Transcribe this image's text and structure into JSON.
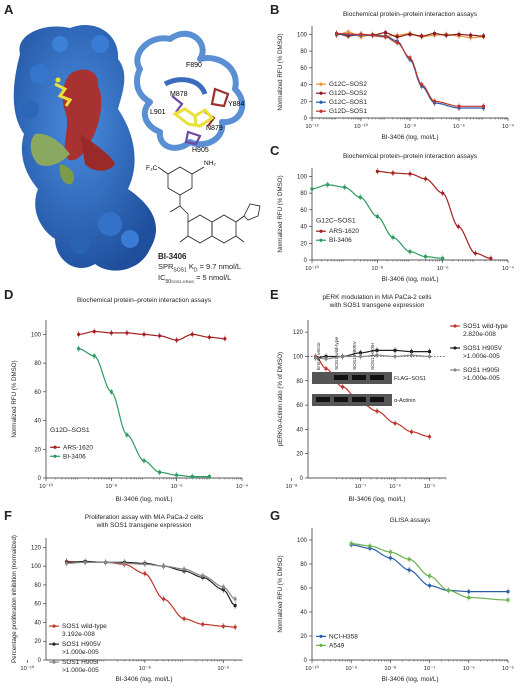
{
  "panel_letters": {
    "A": "A",
    "B": "B",
    "C": "C",
    "D": "D",
    "E": "E",
    "F": "F",
    "G": "G"
  },
  "colors": {
    "blue": "#2e6fc9",
    "red": "#a42020",
    "green": "#7c9a4a",
    "orange": "#e8943a",
    "darkred": "#8b1a1a",
    "tealgreen": "#2e9a5e",
    "crimson": "#c0342c",
    "black": "#222222",
    "gray": "#888888",
    "yellow": "#e9e03a"
  },
  "structure": {
    "residues": [
      "F890",
      "M878",
      "Y884",
      "L901",
      "N879",
      "H905"
    ],
    "compound_name": "BI-3406",
    "spr_line": "SPR",
    "spr_sub": "SOS1",
    "spr_kd": "K",
    "spr_kd_sub": "D",
    "spr_value": "= 9.7 nmol/L",
    "ic_line": "IC",
    "ic_sub": "50",
    "ic_subsub": "SOS1-KRAS",
    "ic_value": "= 5 nmol/L",
    "f3c": "F₃C",
    "nh2": "NH₂"
  },
  "chart_data": [
    {
      "id": "B",
      "type": "line",
      "title": "Biochemical protein–protein interaction assays",
      "xlabel": "BI-3406 (log, mol/L)",
      "ylabel": "Normalized RFU (% DMSO)",
      "xscale": "log",
      "xlim": [
        1e-12,
        0.0001
      ],
      "ylim": [
        0,
        110
      ],
      "xticks": [
        "10⁻¹²",
        "10⁻¹⁰",
        "10⁻⁸",
        "10⁻⁶",
        "10⁻⁴"
      ],
      "yticks": [
        0,
        20,
        40,
        60,
        80,
        100
      ],
      "legend": "bottom-left",
      "series": [
        {
          "name": "G12C–SOS2",
          "color": "#e8943a",
          "x": [
            1e-11,
            3e-11,
            1e-10,
            3e-10,
            1e-09,
            3e-09,
            1e-08,
            3e-08,
            1e-07,
            3e-07,
            1e-06,
            3e-06,
            1e-05
          ],
          "y": [
            99,
            103,
            97,
            100,
            98,
            99,
            101,
            97,
            99,
            100,
            98,
            96,
            97
          ]
        },
        {
          "name": "G12D–SOS2",
          "color": "#8b1a1a",
          "x": [
            1e-11,
            3e-11,
            1e-10,
            3e-10,
            1e-09,
            3e-09,
            1e-08,
            3e-08,
            1e-07,
            3e-07,
            1e-06,
            3e-06,
            1e-05
          ],
          "y": [
            101,
            98,
            100,
            99,
            102,
            97,
            100,
            98,
            101,
            99,
            100,
            99,
            98
          ]
        },
        {
          "name": "G12C–SOS1",
          "color": "#2b5ea8",
          "x": [
            1e-11,
            1e-10,
            1e-09,
            3e-09,
            1e-08,
            3e-08,
            1e-07,
            1e-06,
            1e-05
          ],
          "y": [
            100,
            99,
            98,
            92,
            70,
            38,
            18,
            12,
            12
          ]
        },
        {
          "name": "G12D–SOS1",
          "color": "#c0342c",
          "x": [
            1e-11,
            1e-10,
            1e-09,
            3e-09,
            1e-08,
            3e-08,
            1e-07,
            1e-06,
            1e-05
          ],
          "y": [
            101,
            100,
            97,
            90,
            72,
            40,
            20,
            14,
            14
          ]
        }
      ]
    },
    {
      "id": "C",
      "type": "line",
      "title": "Biochemical protein–protein interaction assays",
      "xlabel": "BI-3406 (log, mol/L)",
      "ylabel": "Normalized RFU (% DMSO)",
      "xscale": "log",
      "xlim": [
        1e-10,
        0.0001
      ],
      "ylim": [
        0,
        110
      ],
      "xticks": [
        "10⁻¹⁰",
        "10⁻⁸",
        "10⁻⁶",
        "10⁻⁴"
      ],
      "yticks": [
        0,
        20,
        40,
        60,
        80,
        100
      ],
      "annotation": "G12C–SOS1",
      "legend": "left",
      "series": [
        {
          "name": "ARS-1620",
          "color": "#a42020",
          "x": [
            1e-08,
            3e-08,
            1e-07,
            3e-07,
            1e-06,
            3e-06,
            1e-05,
            3e-05
          ],
          "y": [
            106,
            104,
            103,
            97,
            80,
            40,
            8,
            2
          ]
        },
        {
          "name": "BI-3406",
          "color": "#2e9a5e",
          "x": [
            1e-10,
            3e-10,
            1e-09,
            3e-09,
            1e-08,
            3e-08,
            1e-07,
            3e-07,
            1e-06
          ],
          "y": [
            85,
            90,
            87,
            75,
            52,
            27,
            10,
            4,
            2
          ]
        }
      ]
    },
    {
      "id": "D",
      "type": "line",
      "title": "Biochemical protein–protein interaction assays",
      "xlabel": "BI-3406 (log, mol/L)",
      "ylabel": "Normalized RFU (% DMSO)",
      "xscale": "log",
      "xlim": [
        1e-10,
        0.0001
      ],
      "ylim": [
        0,
        110
      ],
      "xticks": [
        "10⁻¹⁰",
        "10⁻⁸",
        "10⁻⁶",
        "10⁻⁴"
      ],
      "yticks": [
        0,
        20,
        40,
        60,
        80,
        100
      ],
      "annotation": "G12D–SOS1",
      "legend": "bottom-left",
      "series": [
        {
          "name": "ARS-1620",
          "color": "#a42020",
          "x": [
            1e-09,
            3e-09,
            1e-08,
            3e-08,
            1e-07,
            3e-07,
            1e-06,
            3e-06,
            1e-05,
            3e-05
          ],
          "y": [
            100,
            102,
            101,
            101,
            100,
            99,
            96,
            100,
            98,
            97
          ]
        },
        {
          "name": "BI-3406",
          "color": "#2e9a5e",
          "x": [
            1e-09,
            3e-09,
            1e-08,
            3e-08,
            1e-07,
            3e-07,
            1e-06,
            3e-06,
            1e-05
          ],
          "y": [
            90,
            85,
            60,
            30,
            12,
            4,
            2,
            1,
            1
          ]
        }
      ]
    },
    {
      "id": "E",
      "type": "line",
      "title": "pERK modulation in MIA PaCa-2 cells",
      "title2": "with SOS1 transgene expression",
      "xlabel": "BI-3406 (log, mol/L)",
      "ylabel": "pERK/α-Actinin ratio (% of DMSO)",
      "xscale": "log",
      "xlim": [
        3e-09,
        3e-05
      ],
      "ylim": [
        0,
        130
      ],
      "xticks": [
        "10⁻⁸",
        "10⁻⁷",
        "10⁻⁶",
        "10⁻⁵"
      ],
      "yticks": [
        0,
        20,
        40,
        60,
        80,
        100,
        120
      ],
      "legend": "right",
      "blot": {
        "lanes": [
          "Empty vector",
          "SOS1 wild-type",
          "SOS1 H905V",
          "SOS1 H905I"
        ],
        "band1": "FLAG–SOS1",
        "band2": "α-Actinin"
      },
      "series": [
        {
          "name": "SOS1 wild-type",
          "value": "2.820e-008",
          "color": "#c0342c",
          "x": [
            5e-09,
            1e-08,
            3e-08,
            1e-07,
            3e-07,
            1e-06,
            3e-06,
            1e-05
          ],
          "y": [
            100,
            90,
            75,
            62,
            55,
            45,
            38,
            34
          ]
        },
        {
          "name": "SOS1 H905V",
          "value": ">1.000e-005",
          "color": "#222222",
          "x": [
            5e-09,
            1e-08,
            3e-08,
            1e-07,
            3e-07,
            1e-06,
            3e-06,
            1e-05
          ],
          "y": [
            99,
            100,
            100,
            103,
            105,
            105,
            104,
            104
          ]
        },
        {
          "name": "SOS1 H905I",
          "value": ">1.000e-005",
          "color": "#888888",
          "x": [
            5e-09,
            1e-08,
            3e-08,
            1e-07,
            3e-07,
            1e-06,
            3e-06,
            1e-05
          ],
          "y": [
            99,
            98,
            100,
            100,
            101,
            100,
            101,
            100
          ]
        }
      ]
    },
    {
      "id": "F",
      "type": "line",
      "title": "Proliferation assay with MIA PaCa-2 cells",
      "title2": "with SOS1 transgene expression",
      "xlabel": "BI-3406 (log, mol/L)",
      "ylabel": "Percentage proliferation inhibition (normalized)",
      "xscale": "log",
      "xlim": [
        3e-11,
        3e-06
      ],
      "ylim": [
        0,
        130
      ],
      "xticks": [
        "10⁻¹⁰",
        "10⁻⁸",
        "10⁻⁶"
      ],
      "yticks": [
        0,
        20,
        40,
        60,
        80,
        100,
        120
      ],
      "legend": "bottom-left",
      "series": [
        {
          "name": "SOS1 wild-type",
          "value": "3.192e-008",
          "color": "#c0342c",
          "x": [
            1e-10,
            3e-10,
            1e-09,
            3e-09,
            1e-08,
            3e-08,
            1e-07,
            3e-07,
            1e-06,
            2e-06
          ],
          "y": [
            105,
            104,
            104,
            102,
            92,
            65,
            44,
            38,
            36,
            35
          ]
        },
        {
          "name": "SOS1 H905V",
          "value": ">1.000e-005",
          "color": "#222222",
          "x": [
            1e-10,
            3e-10,
            1e-09,
            3e-09,
            1e-08,
            3e-08,
            1e-07,
            3e-07,
            1e-06,
            2e-06
          ],
          "y": [
            104,
            105,
            104,
            104,
            103,
            100,
            95,
            88,
            75,
            58
          ]
        },
        {
          "name": "SOS1 H905I",
          "value": ">1.000e-005",
          "color": "#888888",
          "x": [
            1e-10,
            3e-10,
            1e-09,
            3e-09,
            1e-08,
            3e-08,
            1e-07,
            3e-07,
            1e-06,
            2e-06
          ],
          "y": [
            103,
            104,
            104,
            103,
            102,
            100,
            97,
            90,
            78,
            65
          ]
        }
      ]
    },
    {
      "id": "G",
      "type": "line",
      "title": "GLISA assays",
      "xlabel": "BI-3406 (log, mol/L)",
      "ylabel": "Normalized RFU (% DMSO)",
      "xscale": "log",
      "xlim": [
        1e-10,
        1e-05
      ],
      "ylim": [
        0,
        110
      ],
      "xticks": [
        "10⁻¹⁰",
        "10⁻⁹",
        "10⁻⁸",
        "10⁻⁷",
        "10⁻⁶",
        "10⁻⁵"
      ],
      "yticks": [
        0,
        20,
        40,
        60,
        80,
        100
      ],
      "legend": "bottom-left",
      "series": [
        {
          "name": "NCI-H358",
          "color": "#2b5ea8",
          "x": [
            1e-09,
            3e-09,
            1e-08,
            3e-08,
            1e-07,
            3e-07,
            1e-06,
            1e-05
          ],
          "y": [
            96,
            93,
            85,
            75,
            62,
            58,
            57,
            57
          ]
        },
        {
          "name": "A549",
          "color": "#6ab04c",
          "x": [
            1e-09,
            3e-09,
            1e-08,
            3e-08,
            1e-07,
            3e-07,
            1e-06,
            1e-05
          ],
          "y": [
            97,
            95,
            90,
            84,
            70,
            58,
            52,
            50
          ]
        }
      ]
    }
  ]
}
